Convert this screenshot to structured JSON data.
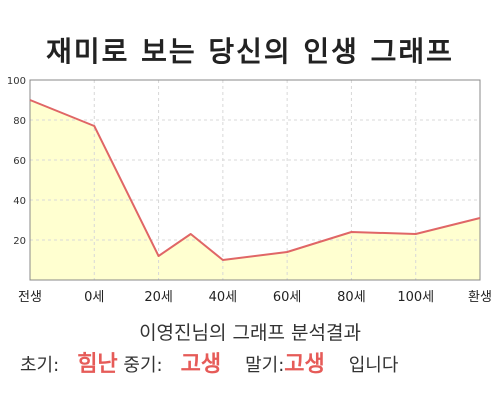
{
  "chart_data": {
    "type": "area",
    "title": "재미로 보는 당신의 인생 그래프",
    "x": [
      -20,
      0,
      20,
      30,
      40,
      60,
      80,
      100,
      120
    ],
    "tick_labels": [
      {
        "x": -20,
        "label": "전생"
      },
      {
        "x": 0,
        "label": "0세"
      },
      {
        "x": 20,
        "label": "20세"
      },
      {
        "x": 40,
        "label": "40세"
      },
      {
        "x": 60,
        "label": "60세"
      },
      {
        "x": 80,
        "label": "80세"
      },
      {
        "x": 100,
        "label": "100세"
      },
      {
        "x": 120,
        "label": "환생"
      }
    ],
    "series": [
      {
        "values": [
          90,
          77,
          12,
          23,
          10,
          14,
          24,
          23,
          31
        ]
      }
    ],
    "yticks": [
      20,
      40,
      60,
      80,
      100
    ],
    "ylim": [
      0,
      100
    ],
    "xlim": [
      -20,
      120
    ],
    "grid": true,
    "colors": {
      "line": "#e06666",
      "fill": "#ffffd0",
      "grid": "#d8d8d8"
    }
  },
  "summary": {
    "title": "이영진님의 그래프 분석결과",
    "early_label": "초기:",
    "early_value": "힘난",
    "mid_label": "중기:",
    "mid_value": "고생",
    "late_label": "말기:",
    "late_value": "고생",
    "ending": "입니다"
  }
}
